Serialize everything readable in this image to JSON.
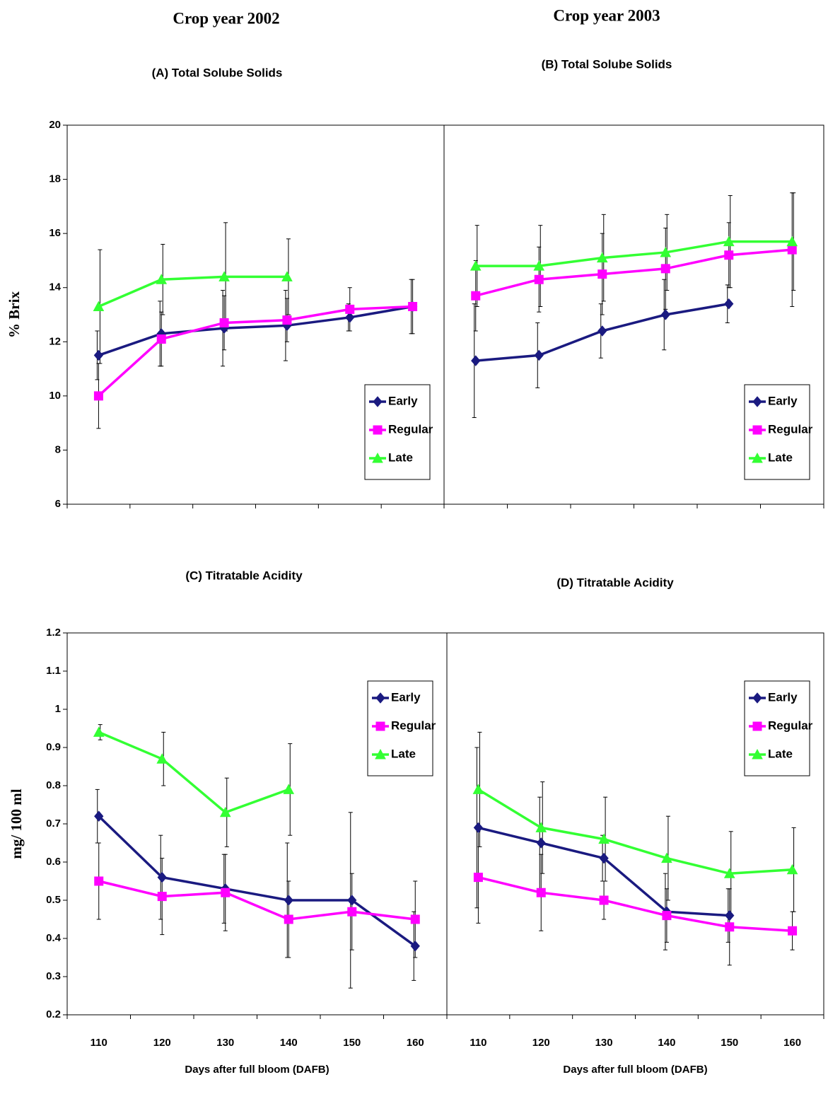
{
  "column_headers": [
    "Crop year 2002",
    "Crop year 2003"
  ],
  "chart_data": [
    {
      "type": "line",
      "title": "(A) Total Solube Solids",
      "ylabel": "% Brix",
      "categories": [
        null,
        null,
        null,
        null,
        null,
        null
      ],
      "ylim": [
        6,
        20
      ],
      "yticks": [
        6,
        8,
        10,
        12,
        14,
        16,
        18,
        20
      ],
      "legend": "lower right",
      "series": [
        {
          "name": "Early",
          "color": "#1a1a80",
          "marker": "diamond",
          "values": [
            11.5,
            12.3,
            12.5,
            12.6,
            12.9,
            13.3
          ],
          "errors": [
            0.9,
            1.2,
            1.4,
            1.3,
            0.5,
            1.0
          ]
        },
        {
          "name": "Regular",
          "color": "#ff00ff",
          "marker": "square",
          "values": [
            10.0,
            12.1,
            12.7,
            12.8,
            13.2,
            13.3
          ],
          "errors": [
            1.2,
            1.0,
            1.0,
            0.8,
            0.8,
            1.0
          ]
        },
        {
          "name": "Late",
          "color": "#33ff33",
          "marker": "triangle",
          "values": [
            13.3,
            14.3,
            14.4,
            14.4,
            null,
            null
          ],
          "errors": [
            2.1,
            1.3,
            2.0,
            1.4,
            null,
            null
          ]
        }
      ]
    },
    {
      "type": "line",
      "title": "(B) Total Solube Solids",
      "categories": [
        null,
        null,
        null,
        null,
        null,
        null
      ],
      "ylim": [
        6,
        20
      ],
      "legend": "lower right",
      "series": [
        {
          "name": "Early",
          "color": "#1a1a80",
          "marker": "diamond",
          "values": [
            11.3,
            11.5,
            12.4,
            13.0,
            13.4,
            null
          ],
          "errors": [
            2.1,
            1.2,
            1.0,
            1.3,
            0.7,
            null
          ]
        },
        {
          "name": "Regular",
          "color": "#ff00ff",
          "marker": "square",
          "values": [
            13.7,
            14.3,
            14.5,
            14.7,
            15.2,
            15.4
          ],
          "errors": [
            1.3,
            1.2,
            1.5,
            1.5,
            1.2,
            2.1
          ]
        },
        {
          "name": "Late",
          "color": "#33ff33",
          "marker": "triangle",
          "values": [
            14.8,
            14.8,
            15.1,
            15.3,
            15.7,
            15.7
          ],
          "errors": [
            1.5,
            1.5,
            1.6,
            1.4,
            1.7,
            1.8
          ]
        }
      ]
    },
    {
      "type": "line",
      "title": "(C) Titratable Acidity",
      "ylabel": "mg/ 100 ml",
      "xlabel": "Days after full bloom (DAFB)",
      "categories": [
        "110",
        "120",
        "130",
        "140",
        "150",
        "160"
      ],
      "ylim": [
        0.2,
        1.2
      ],
      "yticks": [
        0.2,
        0.3,
        0.4,
        0.5,
        0.6,
        0.7,
        0.8,
        0.9,
        1,
        1.1,
        1.2
      ],
      "legend": "upper right",
      "series": [
        {
          "name": "Early",
          "color": "#1a1a80",
          "marker": "diamond",
          "values": [
            0.72,
            0.56,
            0.53,
            0.5,
            0.5,
            0.38
          ],
          "errors": [
            0.07,
            0.11,
            0.09,
            0.15,
            0.23,
            0.09
          ]
        },
        {
          "name": "Regular",
          "color": "#ff00ff",
          "marker": "square",
          "values": [
            0.55,
            0.51,
            0.52,
            0.45,
            0.47,
            0.45
          ],
          "errors": [
            0.1,
            0.1,
            0.1,
            0.1,
            0.1,
            0.1
          ]
        },
        {
          "name": "Late",
          "color": "#33ff33",
          "marker": "triangle",
          "values": [
            0.94,
            0.87,
            0.73,
            0.79,
            null,
            null
          ],
          "errors": [
            0.02,
            0.07,
            0.09,
            0.12,
            null,
            null
          ]
        }
      ]
    },
    {
      "type": "line",
      "title": "(D) Titratable Acidity",
      "xlabel": "Days after full bloom (DAFB)",
      "categories": [
        "110",
        "120",
        "130",
        "140",
        "150",
        "160"
      ],
      "ylim": [
        0.2,
        1.2
      ],
      "legend": "upper right",
      "series": [
        {
          "name": "Early",
          "color": "#1a1a80",
          "marker": "diamond",
          "values": [
            0.69,
            0.65,
            0.61,
            0.47,
            0.46,
            null
          ],
          "errors": [
            0.21,
            0.12,
            0.06,
            0.1,
            0.07,
            null
          ]
        },
        {
          "name": "Regular",
          "color": "#ff00ff",
          "marker": "square",
          "values": [
            0.56,
            0.52,
            0.5,
            0.46,
            0.43,
            0.42
          ],
          "errors": [
            0.12,
            0.1,
            0.05,
            0.07,
            0.1,
            0.05
          ]
        },
        {
          "name": "Late",
          "color": "#33ff33",
          "marker": "triangle",
          "values": [
            0.79,
            0.69,
            0.66,
            0.61,
            0.57,
            0.58
          ],
          "errors": [
            0.15,
            0.12,
            0.11,
            0.11,
            0.11,
            0.11
          ]
        }
      ]
    }
  ]
}
